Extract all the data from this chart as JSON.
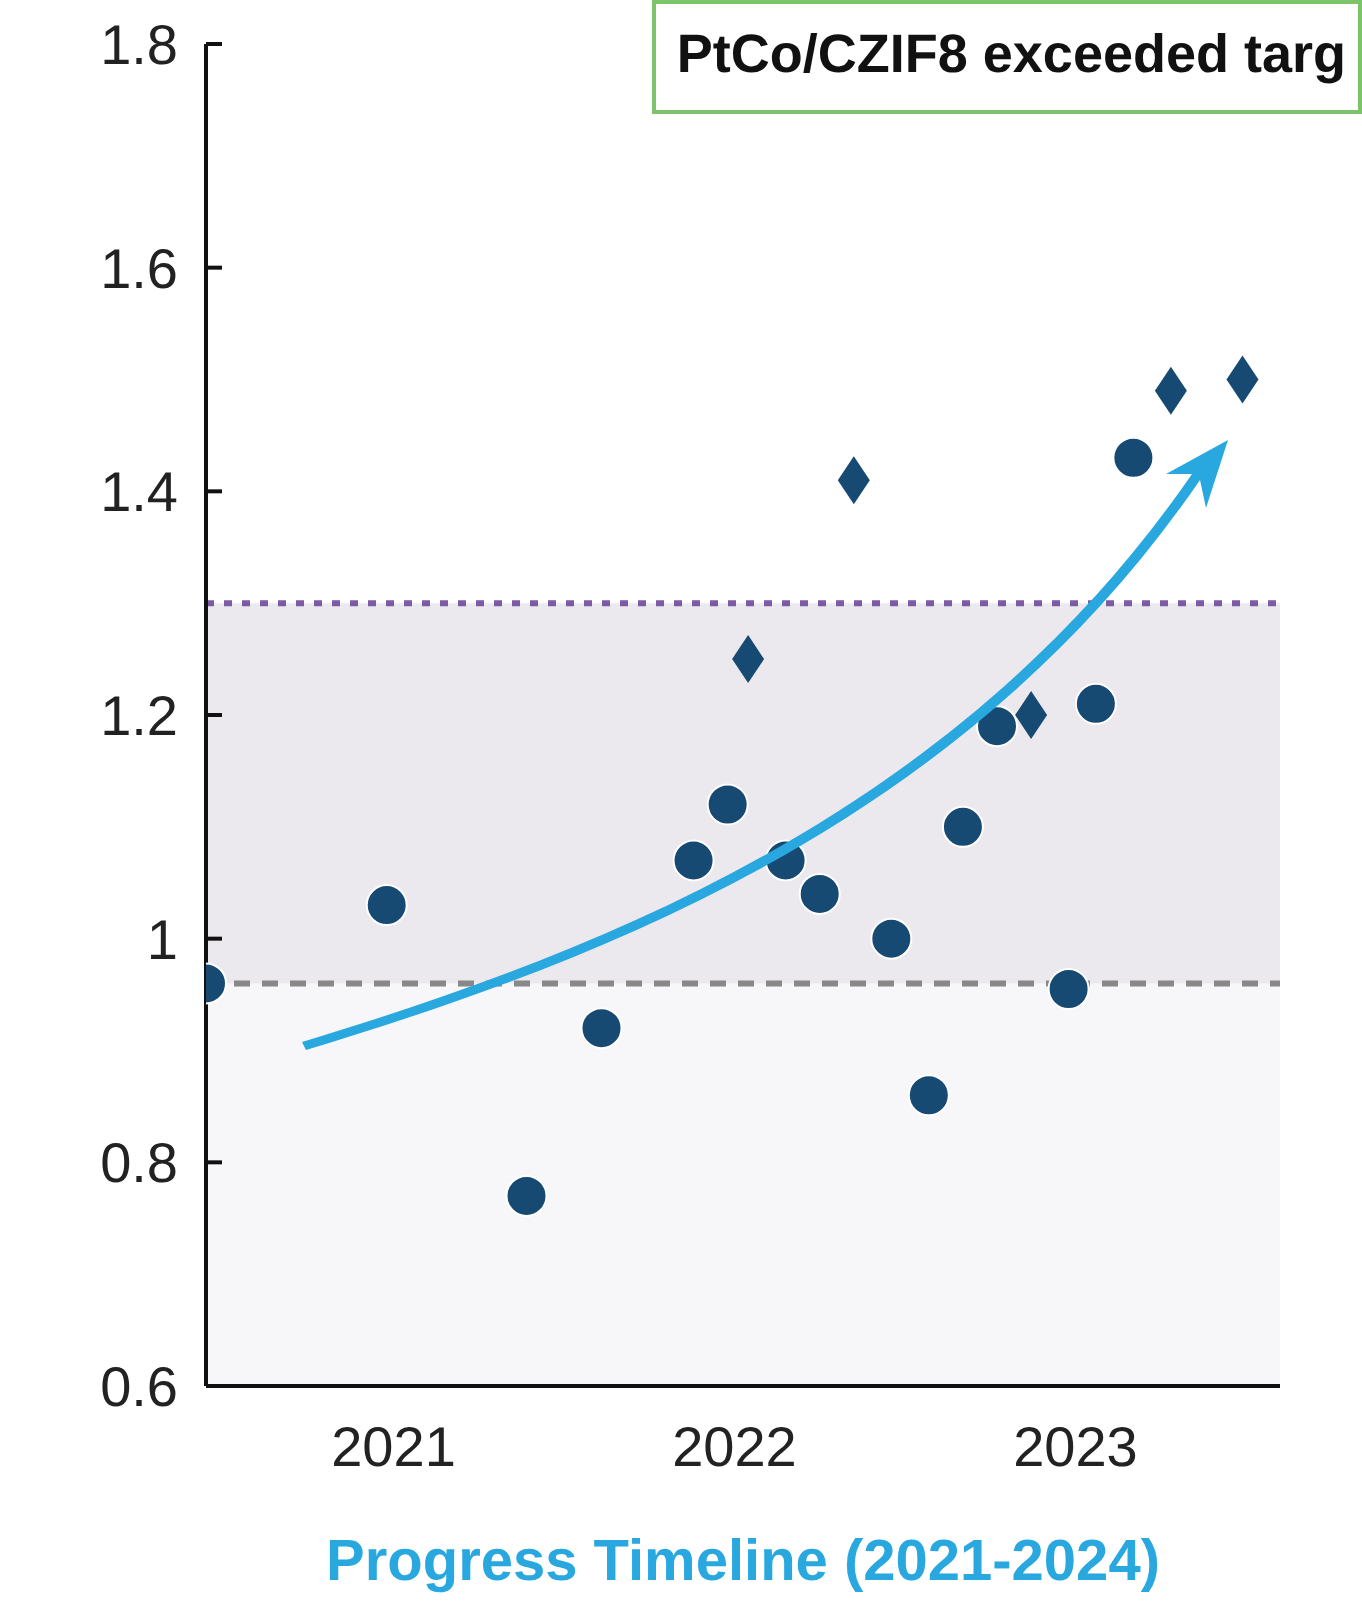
{
  "chart_data": {
    "type": "scatter",
    "title": "PtCo/CZIF8 exceeded targ",
    "xlabel": "Progress Timeline (2021-2024)",
    "xlim": [
      2020.45,
      2023.6
    ],
    "xticks": [
      2021,
      2022,
      2023
    ],
    "ylim": [
      0.6,
      1.8
    ],
    "yticks": [
      0.6,
      0.8,
      1,
      1.2,
      1.4,
      1.6,
      1.8
    ],
    "grid": false,
    "series": [
      {
        "marker": "circle",
        "color": "#174a72",
        "x": [
          2020.45,
          2020.98,
          2021.39,
          2021.61,
          2021.88,
          2021.98,
          2022.15,
          2022.25,
          2022.46,
          2022.57,
          2022.67,
          2022.77,
          2022.98,
          2023.06,
          2023.17
        ],
        "values": [
          0.96,
          1.03,
          0.77,
          0.92,
          1.07,
          1.12,
          1.07,
          1.04,
          1.0,
          0.86,
          1.1,
          1.19,
          0.955,
          1.21,
          1.43
        ]
      },
      {
        "marker": "diamond",
        "color": "#174a72",
        "x": [
          2022.04,
          2022.35,
          2022.87,
          2023.28,
          2023.49
        ],
        "values": [
          1.25,
          1.41,
          1.2,
          1.49,
          1.5
        ]
      }
    ],
    "bands": [
      {
        "axis": "y",
        "from": 0.6,
        "to": 0.96,
        "color": "#f7f6f9"
      },
      {
        "axis": "y",
        "from": 0.96,
        "to": 1.3,
        "color": "#ebe8ee"
      }
    ],
    "ref_lines": [
      {
        "axis": "y",
        "value": 1.3,
        "color": "#7b5aa6",
        "line_style": "dotted"
      },
      {
        "axis": "y",
        "value": 0.96,
        "color": "#888888",
        "line_style": "dashed"
      }
    ]
  }
}
